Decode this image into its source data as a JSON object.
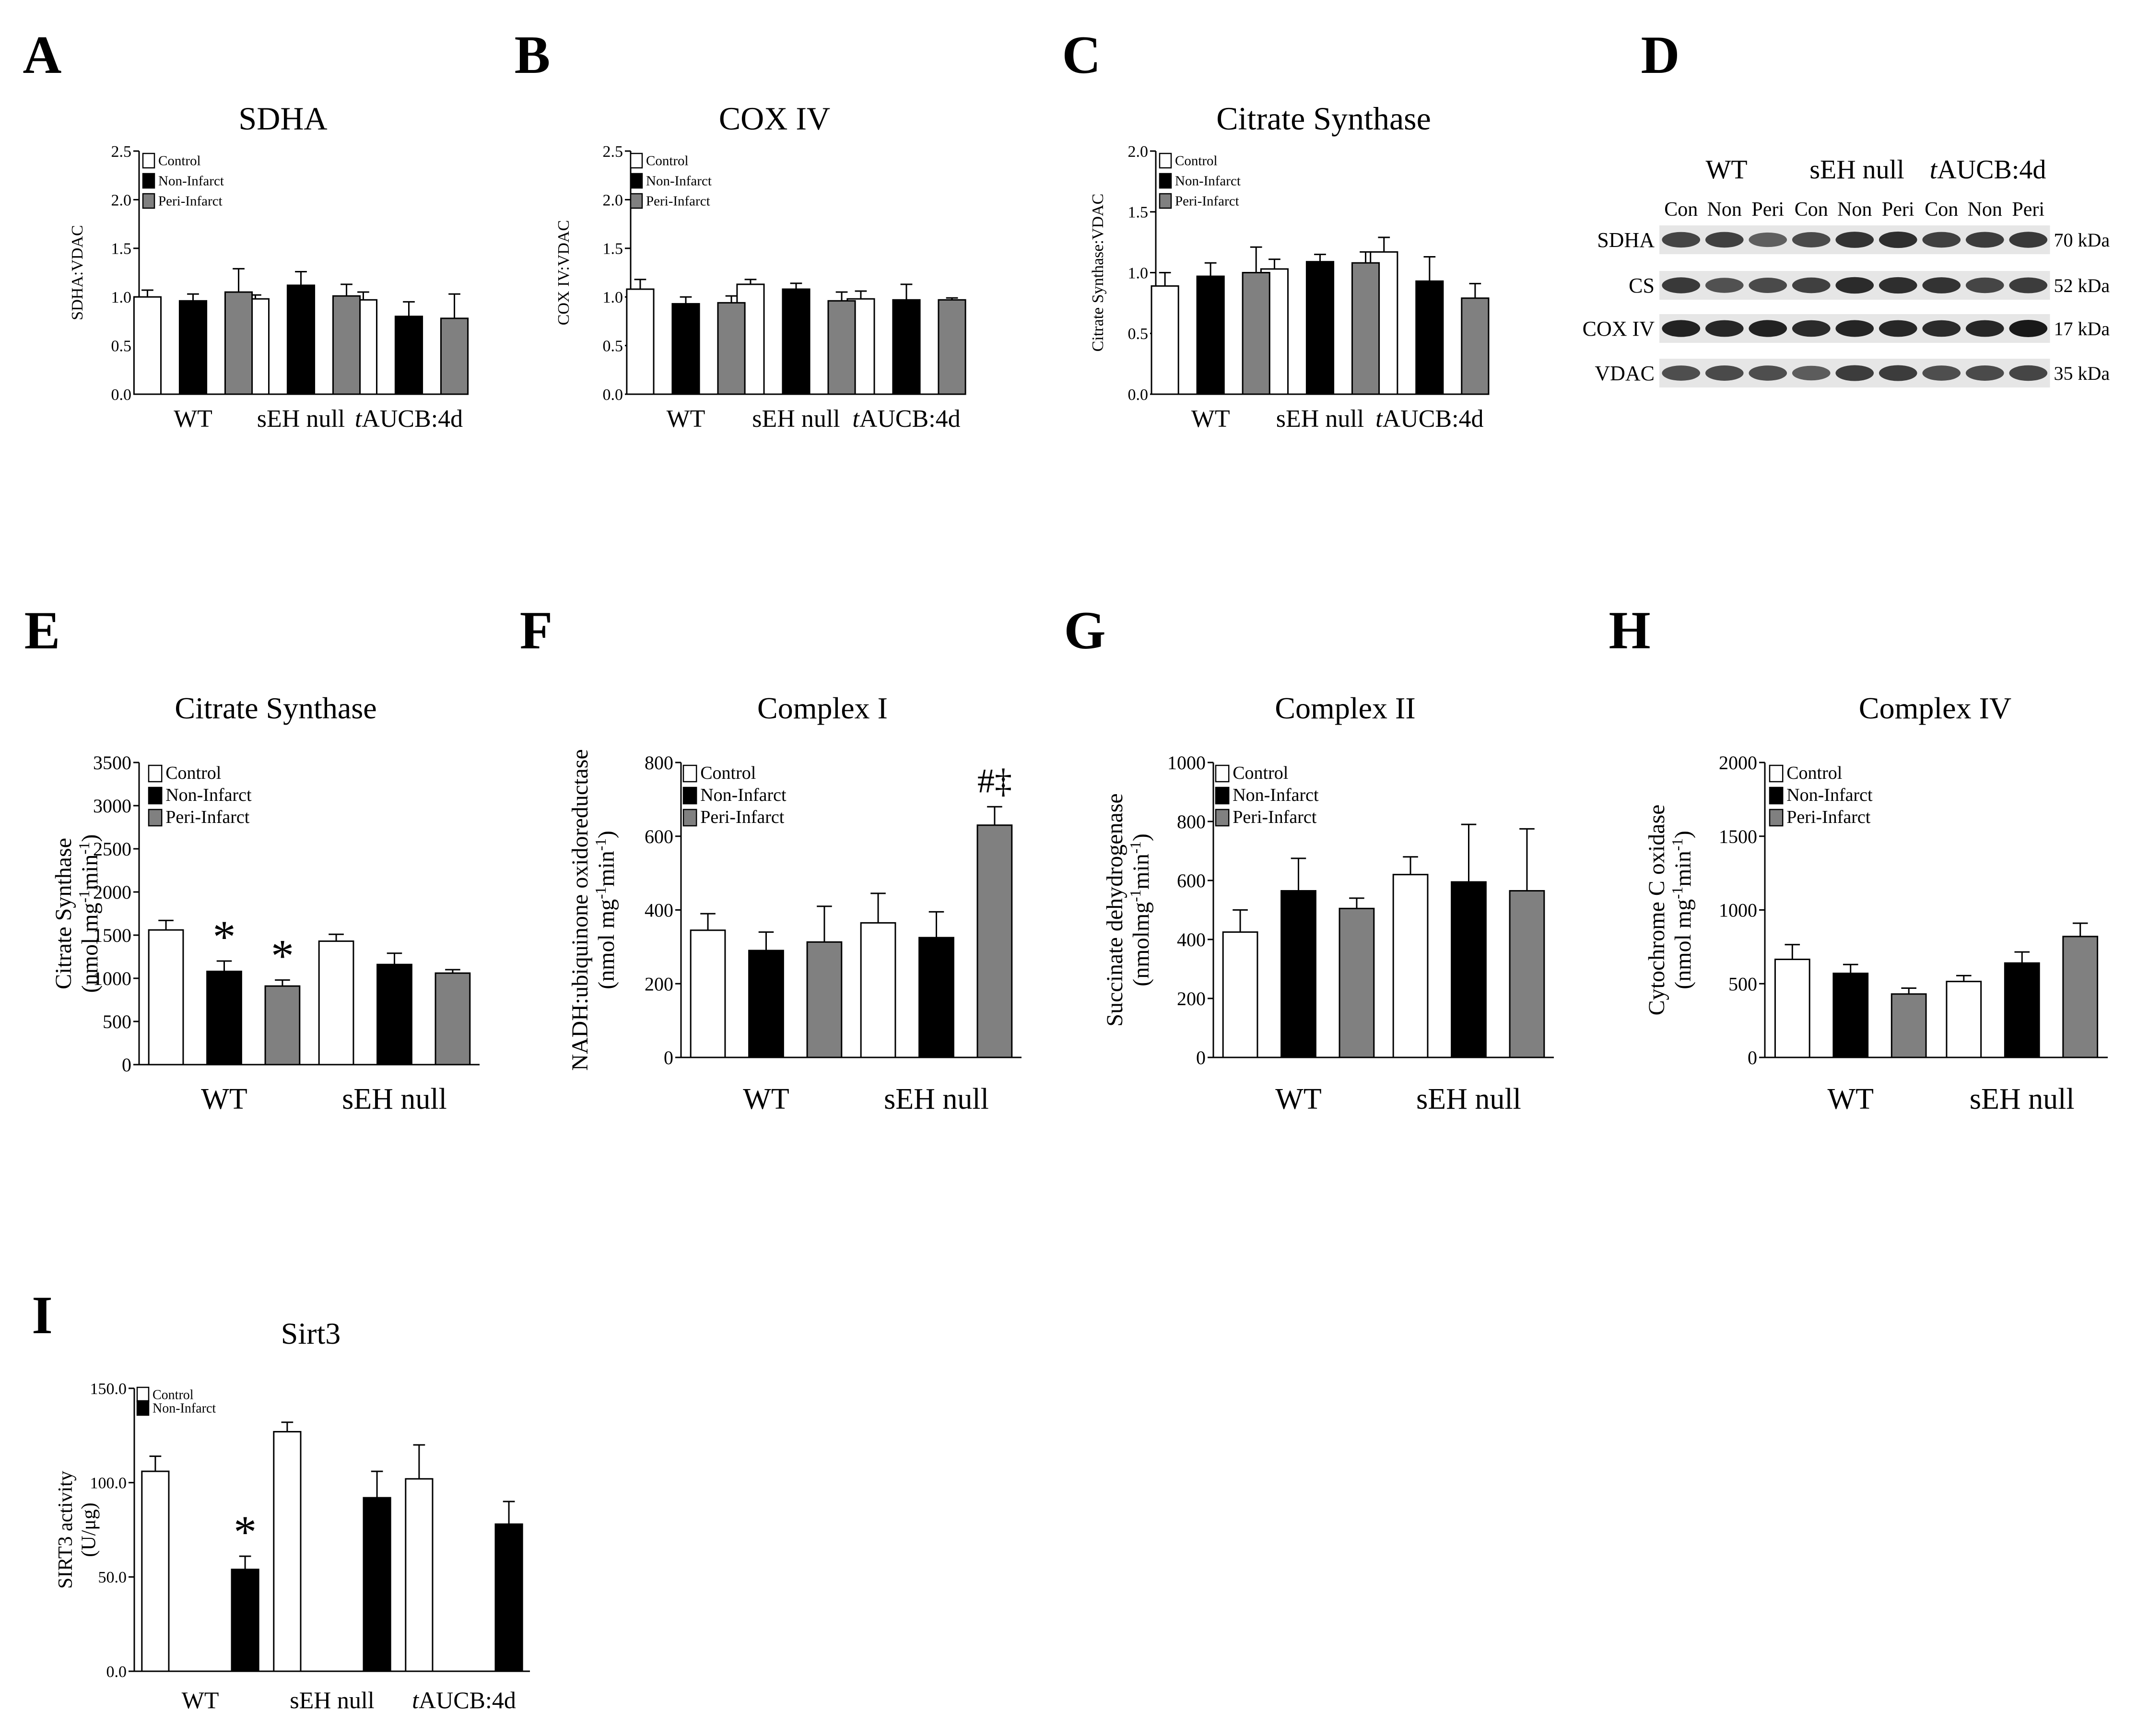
{
  "figure": {
    "title": "Mitochondrial enzyme content and activity panels"
  },
  "colors": {
    "control": "#ffffff",
    "non_infarct": "#000000",
    "peri_infarct": "#808080",
    "axis": "#000000"
  },
  "chart_data": [
    {
      "panel": "A",
      "type": "bar",
      "title": "SDHA",
      "ylabel": "SDHA:VDAC",
      "categories": [
        "WT",
        "sEH null",
        "tAUCB:4d"
      ],
      "italic_prefix": [
        "",
        "",
        "t"
      ],
      "legend": [
        "Control",
        "Non-Infarct",
        "Peri-Infarct"
      ],
      "ylim": [
        0,
        2.5
      ],
      "yticks": [
        0.0,
        0.5,
        1.0,
        1.5,
        2.0,
        2.5
      ],
      "tick_decimals": 1,
      "series": [
        {
          "name": "Control",
          "values": [
            1.0,
            0.98,
            0.97
          ],
          "errors": [
            0.07,
            0.04,
            0.08
          ]
        },
        {
          "name": "Non-Infarct",
          "values": [
            0.96,
            1.12,
            0.8
          ],
          "errors": [
            0.07,
            0.14,
            0.15
          ]
        },
        {
          "name": "Peri-Infarct",
          "values": [
            1.05,
            1.01,
            0.78
          ],
          "errors": [
            0.24,
            0.12,
            0.25
          ]
        }
      ],
      "annotations": []
    },
    {
      "panel": "B",
      "type": "bar",
      "title": "COX IV",
      "ylabel": "COX IV:VDAC",
      "categories": [
        "WT",
        "sEH null",
        "tAUCB:4d"
      ],
      "italic_prefix": [
        "",
        "",
        "t"
      ],
      "legend": [
        "Control",
        "Non-Infarct",
        "Peri-Infarct"
      ],
      "ylim": [
        0,
        2.5
      ],
      "yticks": [
        0.0,
        0.5,
        1.0,
        1.5,
        2.0,
        2.5
      ],
      "tick_decimals": 1,
      "series": [
        {
          "name": "Control",
          "values": [
            1.08,
            1.13,
            0.98
          ],
          "errors": [
            0.1,
            0.05,
            0.08
          ]
        },
        {
          "name": "Non-Infarct",
          "values": [
            0.93,
            1.08,
            0.97
          ],
          "errors": [
            0.07,
            0.06,
            0.16
          ]
        },
        {
          "name": "Peri-Infarct",
          "values": [
            0.94,
            0.96,
            0.97
          ],
          "errors": [
            0.07,
            0.09,
            0.02
          ]
        }
      ],
      "annotations": []
    },
    {
      "panel": "C",
      "type": "bar",
      "title": "Citrate Synthase",
      "ylabel": "Citrate Synthase:VDAC",
      "categories": [
        "WT",
        "sEH null",
        "tAUCB:4d"
      ],
      "italic_prefix": [
        "",
        "",
        "t"
      ],
      "legend": [
        "Control",
        "Non-Infarct",
        "Peri-Infarct"
      ],
      "ylim": [
        0,
        2.0
      ],
      "yticks": [
        0.0,
        0.5,
        1.0,
        1.5,
        2.0
      ],
      "tick_decimals": 1,
      "series": [
        {
          "name": "Control",
          "values": [
            0.89,
            1.03,
            1.17
          ],
          "errors": [
            0.11,
            0.08,
            0.12
          ]
        },
        {
          "name": "Non-Infarct",
          "values": [
            0.97,
            1.09,
            0.93
          ],
          "errors": [
            0.11,
            0.06,
            0.2
          ]
        },
        {
          "name": "Peri-Infarct",
          "values": [
            1.0,
            1.08,
            0.79
          ],
          "errors": [
            0.21,
            0.09,
            0.12
          ]
        }
      ],
      "annotations": []
    },
    {
      "panel": "E",
      "type": "bar",
      "title": "Citrate Synthase",
      "ylabel": "Citrate Synthase (nmol mg⁻¹min⁻¹)",
      "categories": [
        "WT",
        "sEH null"
      ],
      "italic_prefix": [
        "",
        ""
      ],
      "legend": [
        "Control",
        "Non-Infarct",
        "Peri-Infarct"
      ],
      "ylim": [
        0,
        3500
      ],
      "yticks": [
        0,
        500,
        1000,
        1500,
        2000,
        2500,
        3000,
        3500
      ],
      "tick_decimals": 0,
      "series": [
        {
          "name": "Control",
          "values": [
            1560,
            1430
          ],
          "errors": [
            110,
            80
          ]
        },
        {
          "name": "Non-Infarct",
          "values": [
            1080,
            1160
          ],
          "errors": [
            120,
            130
          ]
        },
        {
          "name": "Peri-Infarct",
          "values": [
            910,
            1060
          ],
          "errors": [
            70,
            40
          ]
        }
      ],
      "annotations": [
        {
          "series": 1,
          "category": 0,
          "text": "*"
        },
        {
          "series": 2,
          "category": 0,
          "text": "*"
        }
      ]
    },
    {
      "panel": "F",
      "type": "bar",
      "title": "Complex I",
      "ylabel": "NADH:ubiquinone oxidoreductase (nmol mg⁻¹min⁻¹)",
      "categories": [
        "WT",
        "sEH null"
      ],
      "italic_prefix": [
        "",
        ""
      ],
      "legend": [
        "Control",
        "Non-Infarct",
        "Peri-Infarct"
      ],
      "ylim": [
        0,
        800
      ],
      "yticks": [
        0,
        200,
        400,
        600,
        800
      ],
      "tick_decimals": 0,
      "series": [
        {
          "name": "Control",
          "values": [
            345,
            365
          ],
          "errors": [
            45,
            80
          ]
        },
        {
          "name": "Non-Infarct",
          "values": [
            290,
            325
          ],
          "errors": [
            50,
            70
          ]
        },
        {
          "name": "Peri-Infarct",
          "values": [
            313,
            630
          ],
          "errors": [
            97,
            50
          ]
        }
      ],
      "annotations": [
        {
          "series": 2,
          "category": 1,
          "text": "#‡"
        }
      ]
    },
    {
      "panel": "G",
      "type": "bar",
      "title": "Complex II",
      "ylabel": "Succinate dehydrogenase (nmolmg⁻¹min⁻¹)",
      "categories": [
        "WT",
        "sEH null"
      ],
      "italic_prefix": [
        "",
        ""
      ],
      "legend": [
        "Control",
        "Non-Infarct",
        "Peri-Infarct"
      ],
      "ylim": [
        0,
        1000
      ],
      "yticks": [
        0,
        200,
        400,
        600,
        800,
        1000
      ],
      "tick_decimals": 0,
      "series": [
        {
          "name": "Control",
          "values": [
            425,
            620
          ],
          "errors": [
            75,
            60
          ]
        },
        {
          "name": "Non-Infarct",
          "values": [
            565,
            595
          ],
          "errors": [
            110,
            195
          ]
        },
        {
          "name": "Peri-Infarct",
          "values": [
            505,
            565
          ],
          "errors": [
            35,
            210
          ]
        }
      ],
      "annotations": []
    },
    {
      "panel": "H",
      "type": "bar",
      "title": "Complex IV",
      "ylabel": "Cytochrome C oxidase (nmol mg⁻¹min⁻¹)",
      "categories": [
        "WT",
        "sEH null"
      ],
      "italic_prefix": [
        "",
        ""
      ],
      "legend": [
        "Control",
        "Non-Infarct",
        "Peri-Infarct"
      ],
      "ylim": [
        0,
        2000
      ],
      "yticks": [
        0,
        500,
        1000,
        1500,
        2000
      ],
      "tick_decimals": 0,
      "series": [
        {
          "name": "Control",
          "values": [
            665,
            515
          ],
          "errors": [
            100,
            40
          ]
        },
        {
          "name": "Non-Infarct",
          "values": [
            570,
            640
          ],
          "errors": [
            60,
            75
          ]
        },
        {
          "name": "Peri-Infarct",
          "values": [
            430,
            820
          ],
          "errors": [
            40,
            90
          ]
        }
      ],
      "annotations": []
    },
    {
      "panel": "I",
      "type": "bar",
      "title": "Sirt3",
      "ylabel": "SIRT3 activity (U/μg)",
      "categories": [
        "WT",
        "sEH null",
        "tAUCB:4d"
      ],
      "italic_prefix": [
        "",
        "",
        "t"
      ],
      "legend": [
        "Control",
        "Non-Infarct"
      ],
      "ylim": [
        0,
        150
      ],
      "yticks": [
        0,
        50,
        100,
        150
      ],
      "tick_decimals": 1,
      "series": [
        {
          "name": "Control",
          "values": [
            106,
            127,
            102
          ],
          "errors": [
            8,
            5,
            18
          ]
        },
        {
          "name": "Non-Infarct",
          "values": [
            54,
            92,
            78
          ],
          "errors": [
            7,
            14,
            12
          ]
        }
      ],
      "annotations": [
        {
          "series": 1,
          "category": 0,
          "text": "*"
        }
      ]
    }
  ],
  "blot": {
    "panel": "D",
    "groups": [
      "WT",
      "sEH null",
      "tAUCB:4d"
    ],
    "group_italic_prefix": [
      "",
      "",
      "t"
    ],
    "lanes": [
      "Con",
      "Non",
      "Peri",
      "Con",
      "Non",
      "Peri",
      "Con",
      "Non",
      "Peri"
    ],
    "rows": [
      {
        "label": "SDHA",
        "size": "70 kDa"
      },
      {
        "label": "CS",
        "size": "52 kDa"
      },
      {
        "label": "COX IV",
        "size": "17 kDa"
      },
      {
        "label": "VDAC",
        "size": "35 kDa"
      }
    ],
    "band_intensity": [
      [
        0.75,
        0.78,
        0.6,
        0.72,
        0.85,
        0.88,
        0.78,
        0.8,
        0.82
      ],
      [
        0.82,
        0.68,
        0.72,
        0.78,
        0.9,
        0.88,
        0.85,
        0.75,
        0.8
      ],
      [
        0.95,
        0.92,
        0.95,
        0.9,
        0.93,
        0.92,
        0.9,
        0.92,
        1.0
      ],
      [
        0.7,
        0.72,
        0.7,
        0.62,
        0.8,
        0.8,
        0.7,
        0.72,
        0.75
      ]
    ]
  }
}
